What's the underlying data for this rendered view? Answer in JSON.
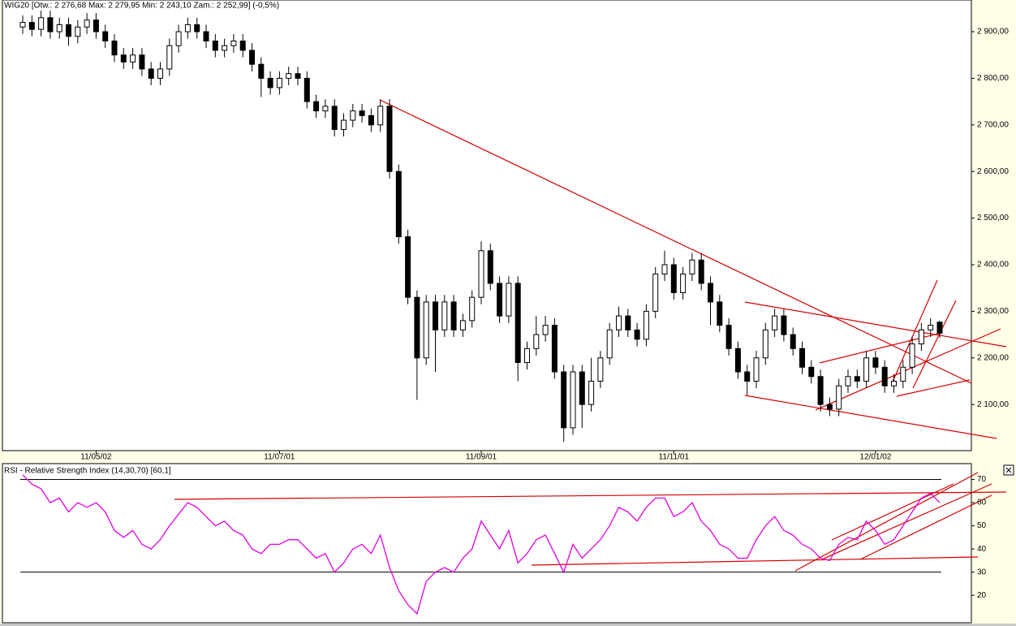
{
  "chart_data": [
    {
      "type": "candlestick",
      "title": "WIG20 [Otw.: 2 276,68   Max: 2 279,95   Min: 2 243,10   Zam.: 2 252,99] (-0,5%)",
      "up_color": "#ffffff",
      "down_color": "#000000",
      "categories": [
        null,
        null,
        null,
        null,
        null,
        null,
        null,
        null,
        "11/05/02",
        null,
        null,
        null,
        null,
        null,
        null,
        null,
        null,
        null,
        null,
        null,
        null,
        null,
        null,
        null,
        null,
        null,
        null,
        null,
        "11/07/01",
        null,
        null,
        null,
        null,
        null,
        null,
        null,
        null,
        null,
        null,
        null,
        null,
        null,
        null,
        null,
        null,
        null,
        null,
        null,
        null,
        null,
        "11/09/01",
        null,
        null,
        null,
        null,
        null,
        null,
        null,
        null,
        null,
        null,
        null,
        null,
        null,
        null,
        null,
        null,
        null,
        null,
        null,
        null,
        "11/11/01",
        null,
        null,
        null,
        null,
        null,
        null,
        null,
        null,
        null,
        null,
        null,
        null,
        null,
        null,
        null,
        null,
        null,
        null,
        null,
        null,
        null,
        "12/01/02",
        null,
        null,
        null,
        null,
        null,
        null,
        null
      ],
      "open": [
        2910,
        2920,
        2905,
        2930,
        2900,
        2915,
        2890,
        2910,
        2925,
        2900,
        2880,
        2850,
        2835,
        2850,
        2820,
        2800,
        2820,
        2870,
        2900,
        2915,
        2900,
        2880,
        2860,
        2870,
        2880,
        2860,
        2830,
        2800,
        2780,
        2800,
        2810,
        2800,
        2750,
        2730,
        2740,
        2690,
        2710,
        2730,
        2720,
        2700,
        2740,
        2600,
        2460,
        2330,
        2200,
        2320,
        2260,
        2320,
        2260,
        2280,
        2330,
        2430,
        2360,
        2290,
        2360,
        2190,
        2220,
        2250,
        2270,
        2170,
        2050,
        2170,
        2100,
        2150,
        2200,
        2260,
        2290,
        2260,
        2240,
        2300,
        2380,
        2400,
        2340,
        2380,
        2410,
        2360,
        2320,
        2270,
        2220,
        2170,
        2150,
        2200,
        2260,
        2290,
        2250,
        2220,
        2180,
        2160,
        2100,
        2090,
        2140,
        2160,
        2150,
        2200,
        2180,
        2140,
        2150,
        2180,
        2230,
        2260,
        2276.68
      ],
      "high": [
        2935,
        2935,
        2945,
        2945,
        2930,
        2930,
        2925,
        2940,
        2940,
        2915,
        2895,
        2865,
        2865,
        2865,
        2835,
        2835,
        2885,
        2915,
        2930,
        2930,
        2915,
        2895,
        2885,
        2895,
        2895,
        2875,
        2845,
        2815,
        2815,
        2825,
        2825,
        2815,
        2765,
        2755,
        2755,
        2725,
        2745,
        2745,
        2735,
        2755,
        2755,
        2615,
        2475,
        2345,
        2335,
        2335,
        2335,
        2335,
        2295,
        2345,
        2450,
        2445,
        2375,
        2375,
        2375,
        2235,
        2290,
        2290,
        2285,
        2185,
        2185,
        2185,
        2200,
        2215,
        2275,
        2310,
        2305,
        2275,
        2315,
        2395,
        2430,
        2415,
        2395,
        2425,
        2425,
        2375,
        2335,
        2285,
        2235,
        2185,
        2215,
        2275,
        2305,
        2305,
        2265,
        2235,
        2195,
        2175,
        2115,
        2155,
        2175,
        2175,
        2215,
        2215,
        2195,
        2165,
        2195,
        2245,
        2275,
        2285,
        2279.95
      ],
      "low": [
        2895,
        2890,
        2890,
        2885,
        2885,
        2870,
        2875,
        2895,
        2885,
        2865,
        2835,
        2820,
        2820,
        2805,
        2785,
        2785,
        2805,
        2855,
        2885,
        2885,
        2865,
        2845,
        2845,
        2855,
        2845,
        2815,
        2760,
        2765,
        2765,
        2785,
        2785,
        2735,
        2715,
        2715,
        2675,
        2675,
        2695,
        2705,
        2685,
        2685,
        2585,
        2445,
        2315,
        2110,
        2185,
        2170,
        2245,
        2245,
        2245,
        2265,
        2315,
        2345,
        2275,
        2275,
        2150,
        2175,
        2205,
        2235,
        2155,
        2020,
        2035,
        2050,
        2085,
        2135,
        2185,
        2245,
        2245,
        2225,
        2225,
        2285,
        2365,
        2325,
        2325,
        2365,
        2345,
        2270,
        2255,
        2205,
        2155,
        2120,
        2135,
        2185,
        2245,
        2235,
        2205,
        2165,
        2145,
        2085,
        2075,
        2075,
        2125,
        2135,
        2135,
        2165,
        2125,
        2125,
        2135,
        2165,
        2215,
        2245,
        2243.1
      ],
      "close": [
        2920,
        2905,
        2930,
        2900,
        2915,
        2890,
        2910,
        2925,
        2900,
        2880,
        2850,
        2835,
        2850,
        2820,
        2800,
        2820,
        2870,
        2900,
        2915,
        2900,
        2880,
        2860,
        2870,
        2880,
        2860,
        2830,
        2800,
        2780,
        2800,
        2810,
        2800,
        2750,
        2730,
        2740,
        2690,
        2710,
        2730,
        2720,
        2700,
        2740,
        2600,
        2460,
        2330,
        2200,
        2320,
        2260,
        2320,
        2260,
        2280,
        2330,
        2430,
        2360,
        2290,
        2360,
        2190,
        2220,
        2250,
        2270,
        2170,
        2050,
        2170,
        2100,
        2150,
        2200,
        2260,
        2290,
        2260,
        2240,
        2300,
        2380,
        2400,
        2340,
        2380,
        2410,
        2360,
        2320,
        2270,
        2220,
        2170,
        2150,
        2200,
        2260,
        2290,
        2250,
        2220,
        2180,
        2160,
        2100,
        2090,
        2140,
        2160,
        2150,
        2200,
        2180,
        2140,
        2150,
        2180,
        2230,
        2260,
        2270,
        2252.99
      ],
      "ylim": [
        2001,
        2968
      ],
      "yticks": [
        {
          "value": 2100,
          "label": "2 100,00"
        },
        {
          "value": 2200,
          "label": "2 200,00"
        },
        {
          "value": 2300,
          "label": "2 300,00"
        },
        {
          "value": 2400,
          "label": "2 400,00"
        },
        {
          "value": 2500,
          "label": "2 500,00"
        },
        {
          "value": 2600,
          "label": "2 600,00"
        },
        {
          "value": 2700,
          "label": "2 700,00"
        },
        {
          "value": 2800,
          "label": "2 800,00"
        },
        {
          "value": 2900,
          "label": "2 900,00"
        }
      ]
    },
    {
      "type": "line",
      "title": "RSI - Relative Strength Index (14,30,70) [60,1]",
      "color": "#e000e0",
      "values": [
        72,
        68,
        66,
        60,
        62,
        56,
        60,
        58,
        60,
        56,
        48,
        45,
        48,
        42,
        40,
        44,
        50,
        55,
        60,
        58,
        54,
        50,
        52,
        48,
        46,
        40,
        38,
        42,
        42,
        44,
        44,
        40,
        36,
        38,
        30,
        34,
        40,
        42,
        38,
        46,
        32,
        22,
        16,
        12,
        26,
        30,
        32,
        30,
        36,
        40,
        52,
        46,
        40,
        48,
        34,
        38,
        44,
        46,
        38,
        30,
        42,
        36,
        40,
        44,
        50,
        58,
        56,
        52,
        58,
        62,
        62,
        54,
        56,
        60,
        52,
        48,
        42,
        40,
        36,
        36,
        44,
        50,
        54,
        48,
        46,
        42,
        40,
        36,
        35,
        42,
        45,
        44,
        52,
        48,
        42,
        44,
        50,
        56,
        62,
        64,
        60
      ],
      "reference_lines": [
        70,
        30
      ],
      "ylim": [
        8.5,
        76.5
      ],
      "yticks": [
        20,
        30,
        40,
        50,
        60,
        70
      ]
    }
  ]
}
